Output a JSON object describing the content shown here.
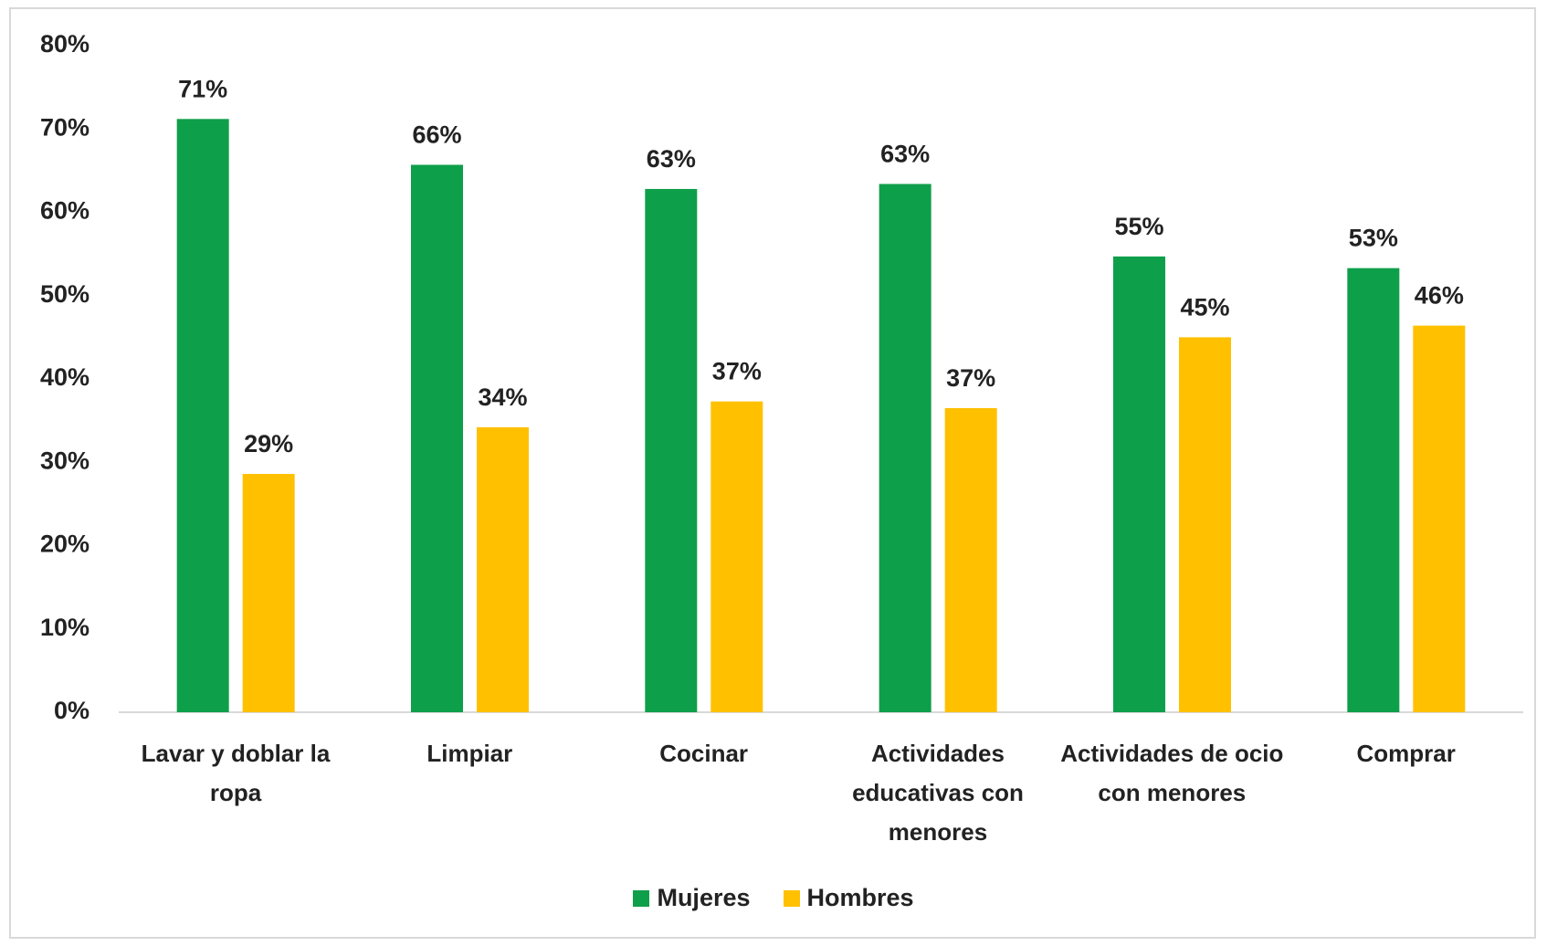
{
  "chart_data": {
    "type": "bar",
    "categories": [
      "Lavar y doblar la ropa",
      "Limpiar",
      "Cocinar",
      "Actividades educativas con menores",
      "Actividades de ocio con menores",
      "Comprar"
    ],
    "series": [
      {
        "name": "Mujeres",
        "color": "#0e9f4a",
        "values": [
          71.2,
          65.7,
          62.8,
          63.4,
          54.7,
          53.3
        ],
        "value_labels": [
          "71%",
          "66%",
          "63%",
          "63%",
          "55%",
          "53%"
        ]
      },
      {
        "name": "Hombres",
        "color": "#ffc000",
        "values": [
          28.6,
          34.2,
          37.3,
          36.5,
          45.0,
          46.4
        ],
        "value_labels": [
          "29%",
          "34%",
          "37%",
          "37%",
          "45%",
          "46%"
        ]
      }
    ],
    "ylim": [
      0,
      80
    ],
    "yticks": [
      {
        "value": 0,
        "label": "0%"
      },
      {
        "value": 10,
        "label": "10%"
      },
      {
        "value": 20,
        "label": "20%"
      },
      {
        "value": 30,
        "label": "30%"
      },
      {
        "value": 40,
        "label": "40%"
      },
      {
        "value": 50,
        "label": "50%"
      },
      {
        "value": 60,
        "label": "60%"
      },
      {
        "value": 70,
        "label": "70%"
      },
      {
        "value": 80,
        "label": "80%"
      }
    ],
    "grid": false,
    "legend": "bottom"
  }
}
